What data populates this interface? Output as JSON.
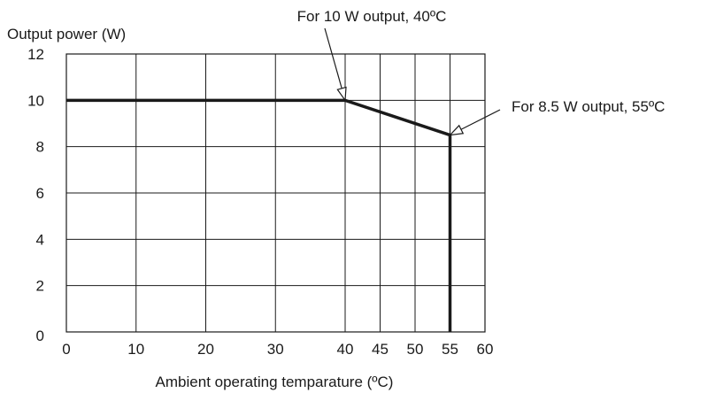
{
  "chart_data": {
    "type": "line",
    "ylabel": "Output power (W)",
    "xlabel": "Ambient operating temparature (ºC)",
    "x_ticks": [
      0,
      10,
      20,
      30,
      40,
      45,
      50,
      55,
      60
    ],
    "y_ticks": [
      0,
      2,
      4,
      6,
      8,
      10,
      12
    ],
    "xlim": [
      0,
      60
    ],
    "ylim": [
      0,
      12
    ],
    "grid": true,
    "series": [
      {
        "points": [
          [
            0,
            10
          ],
          [
            40,
            10
          ],
          [
            55,
            8.5
          ],
          [
            55,
            0
          ]
        ]
      }
    ],
    "annotations": [
      {
        "text": "For 10 W output, 40ºC",
        "x": 40,
        "y": 10
      },
      {
        "text": "For 8.5 W output, 55ºC",
        "x": 55,
        "y": 8.5
      }
    ],
    "colors": {
      "line": "#1a1a1a",
      "grid": "#1a1a1a",
      "background": "#ffffff"
    }
  }
}
